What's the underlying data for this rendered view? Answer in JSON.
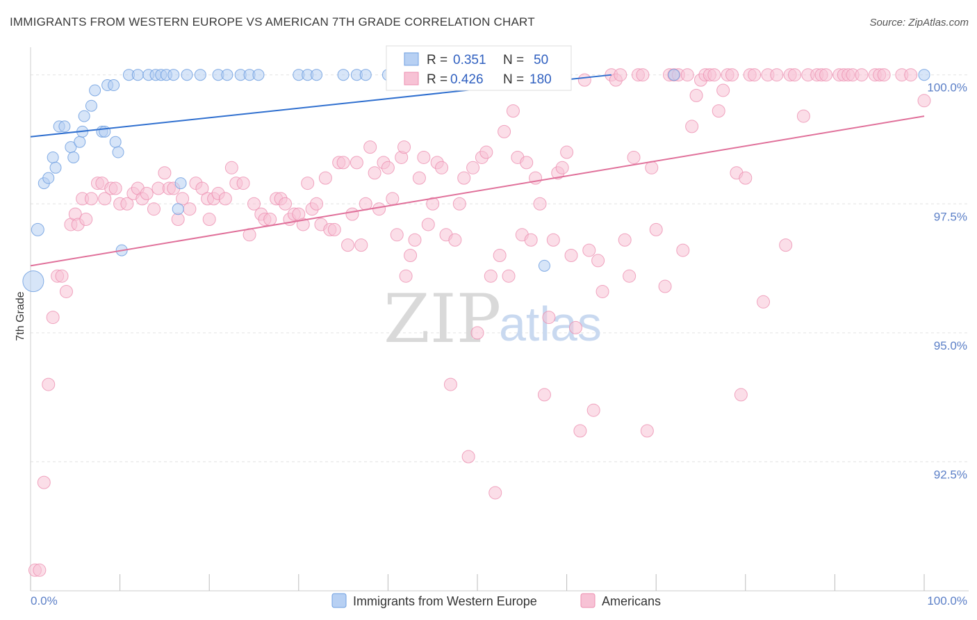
{
  "header": {
    "title": "IMMIGRANTS FROM WESTERN EUROPE VS AMERICAN 7TH GRADE CORRELATION CHART",
    "source": "Source: ZipAtlas.com"
  },
  "watermark": {
    "zip": "ZIP",
    "atlas": "atlas"
  },
  "colors": {
    "blue": "#6f9fe0",
    "blue_fill": "#b7d0f3",
    "blue_line": "#2f6fcf",
    "pink": "#ec8fb0",
    "pink_fill": "#f7c2d5",
    "pink_line": "#e0709a",
    "tick_label": "#5b7fc7",
    "grid": "#e2e2e2"
  },
  "legend": {
    "r_label": "R =",
    "n_label": "N =",
    "items": [
      {
        "r": "0.351",
        "n": "50",
        "color": "#6f9fe0"
      },
      {
        "r": "0.426",
        "n": "180",
        "color": "#ec8fb0"
      }
    ]
  },
  "bottom_legend": [
    {
      "label": "Immigrants from Western Europe",
      "color": "#6f9fe0"
    },
    {
      "label": "Americans",
      "color": "#ec8fb0"
    }
  ],
  "chart_data": {
    "type": "scatter",
    "title": "IMMIGRANTS FROM WESTERN EUROPE VS AMERICAN 7TH GRADE CORRELATION CHART",
    "xlabel": "",
    "ylabel": "7th Grade",
    "xlim": [
      0,
      100
    ],
    "ylim": [
      90.0,
      100.4
    ],
    "x_ticks": [
      {
        "value": 0,
        "label": "0.0%"
      },
      {
        "value": 100,
        "label": "100.0%"
      }
    ],
    "y_ticks": [
      {
        "value": 92.5,
        "label": "92.5%"
      },
      {
        "value": 95.0,
        "label": "95.0%"
      },
      {
        "value": 97.5,
        "label": "97.5%"
      },
      {
        "value": 100.0,
        "label": "100.0%"
      }
    ],
    "grid": true,
    "legend_position": "top-center",
    "series": [
      {
        "name": "Immigrants from Western Europe",
        "r": 0.351,
        "n": 50,
        "trend": [
          [
            0,
            98.8
          ],
          [
            65,
            100.0
          ]
        ],
        "points": [
          [
            0.3,
            96.0,
            15
          ],
          [
            0.8,
            97.0,
            9
          ],
          [
            1.5,
            97.9,
            8
          ],
          [
            2.0,
            98.0,
            8
          ],
          [
            2.5,
            98.4,
            8
          ],
          [
            2.8,
            98.2,
            8
          ],
          [
            3.2,
            99.0,
            8
          ],
          [
            3.8,
            99.0,
            8
          ],
          [
            4.5,
            98.6,
            8
          ],
          [
            4.8,
            98.4,
            8
          ],
          [
            5.5,
            98.7,
            8
          ],
          [
            5.8,
            98.9,
            8
          ],
          [
            6.0,
            99.2,
            8
          ],
          [
            6.8,
            99.4,
            8
          ],
          [
            7.2,
            99.7,
            8
          ],
          [
            8.0,
            98.9,
            8
          ],
          [
            8.3,
            98.9,
            8
          ],
          [
            8.6,
            99.8,
            8
          ],
          [
            9.3,
            99.8,
            8
          ],
          [
            9.5,
            98.7,
            8
          ],
          [
            9.8,
            98.5,
            8
          ],
          [
            10.2,
            96.6,
            8
          ],
          [
            11.0,
            100.0,
            8
          ],
          [
            12.0,
            100.0,
            8
          ],
          [
            13.2,
            100.0,
            8
          ],
          [
            14.0,
            100.0,
            8
          ],
          [
            14.6,
            100.0,
            8
          ],
          [
            15.2,
            100.0,
            8
          ],
          [
            16.0,
            100.0,
            8
          ],
          [
            16.5,
            97.4,
            8
          ],
          [
            16.8,
            97.9,
            8
          ],
          [
            17.5,
            100.0,
            8
          ],
          [
            19.0,
            100.0,
            8
          ],
          [
            21.0,
            100.0,
            8
          ],
          [
            22.0,
            100.0,
            8
          ],
          [
            23.5,
            100.0,
            8
          ],
          [
            24.5,
            100.0,
            8
          ],
          [
            25.5,
            100.0,
            8
          ],
          [
            30.0,
            100.0,
            8
          ],
          [
            31.0,
            100.0,
            8
          ],
          [
            32.0,
            100.0,
            8
          ],
          [
            35.0,
            100.0,
            8
          ],
          [
            36.5,
            100.0,
            8
          ],
          [
            37.5,
            100.0,
            8
          ],
          [
            40.0,
            100.0,
            8
          ],
          [
            43.0,
            100.0,
            8
          ],
          [
            48.0,
            100.0,
            8
          ],
          [
            51.0,
            100.0,
            8
          ],
          [
            57.5,
            96.3,
            8
          ],
          [
            72.0,
            100.0,
            8
          ],
          [
            100.0,
            100.0,
            8
          ]
        ]
      },
      {
        "name": "Americans",
        "r": 0.426,
        "n": 180,
        "trend": [
          [
            0,
            96.3
          ],
          [
            100,
            99.2
          ]
        ],
        "points": [
          [
            0.5,
            90.4,
            9
          ],
          [
            1.0,
            90.4,
            9
          ],
          [
            1.5,
            92.1,
            9
          ],
          [
            2.0,
            94.0,
            9
          ],
          [
            2.5,
            95.3,
            9
          ],
          [
            3.0,
            96.1,
            9
          ],
          [
            3.5,
            96.1,
            9
          ],
          [
            4.0,
            95.8,
            9
          ],
          [
            4.5,
            97.1,
            9
          ],
          [
            5.0,
            97.3,
            9
          ],
          [
            5.3,
            97.1,
            9
          ],
          [
            5.8,
            97.6,
            9
          ],
          [
            6.2,
            97.2,
            9
          ],
          [
            6.8,
            97.6,
            9
          ],
          [
            7.5,
            97.9,
            9
          ],
          [
            8.0,
            97.9,
            9
          ],
          [
            8.3,
            97.6,
            9
          ],
          [
            9.0,
            97.8,
            9
          ],
          [
            9.5,
            97.8,
            9
          ],
          [
            10.0,
            97.5,
            9
          ],
          [
            10.8,
            97.5,
            9
          ],
          [
            11.5,
            97.7,
            9
          ],
          [
            12.0,
            97.8,
            9
          ],
          [
            12.5,
            97.6,
            9
          ],
          [
            13.0,
            97.7,
            9
          ],
          [
            13.8,
            97.4,
            9
          ],
          [
            14.3,
            97.8,
            9
          ],
          [
            15.0,
            98.1,
            9
          ],
          [
            15.5,
            97.8,
            9
          ],
          [
            16.0,
            97.8,
            9
          ],
          [
            16.5,
            97.2,
            9
          ],
          [
            17.0,
            97.6,
            9
          ],
          [
            17.8,
            97.4,
            9
          ],
          [
            18.5,
            97.9,
            9
          ],
          [
            19.2,
            97.8,
            9
          ],
          [
            19.8,
            97.6,
            9
          ],
          [
            20.0,
            97.2,
            9
          ],
          [
            20.5,
            97.6,
            9
          ],
          [
            21.0,
            97.7,
            9
          ],
          [
            21.8,
            97.6,
            9
          ],
          [
            22.5,
            98.2,
            9
          ],
          [
            23.0,
            97.9,
            9
          ],
          [
            23.8,
            97.9,
            9
          ],
          [
            24.5,
            96.9,
            9
          ],
          [
            25.0,
            97.5,
            9
          ],
          [
            25.8,
            97.3,
            9
          ],
          [
            26.2,
            97.2,
            9
          ],
          [
            26.8,
            97.2,
            9
          ],
          [
            27.5,
            97.6,
            9
          ],
          [
            28.0,
            97.6,
            9
          ],
          [
            28.5,
            97.5,
            9
          ],
          [
            29.0,
            97.2,
            9
          ],
          [
            29.5,
            97.3,
            9
          ],
          [
            30.0,
            97.3,
            9
          ],
          [
            30.5,
            97.1,
            9
          ],
          [
            31.0,
            97.9,
            9
          ],
          [
            31.5,
            97.4,
            9
          ],
          [
            32.0,
            97.5,
            9
          ],
          [
            32.5,
            97.1,
            9
          ],
          [
            33.0,
            98.0,
            9
          ],
          [
            33.5,
            97.0,
            9
          ],
          [
            34.0,
            97.0,
            9
          ],
          [
            34.5,
            98.3,
            9
          ],
          [
            35.0,
            98.3,
            9
          ],
          [
            35.5,
            96.7,
            9
          ],
          [
            36.0,
            97.3,
            9
          ],
          [
            36.5,
            98.3,
            9
          ],
          [
            37.0,
            96.7,
            9
          ],
          [
            37.5,
            97.5,
            9
          ],
          [
            38.0,
            98.6,
            9
          ],
          [
            38.5,
            98.1,
            9
          ],
          [
            39.0,
            97.4,
            9
          ],
          [
            39.5,
            98.3,
            9
          ],
          [
            40.0,
            98.2,
            9
          ],
          [
            40.5,
            97.6,
            9
          ],
          [
            41.0,
            96.9,
            9
          ],
          [
            41.5,
            98.4,
            9
          ],
          [
            41.8,
            98.6,
            9
          ],
          [
            42.0,
            96.1,
            9
          ],
          [
            42.5,
            96.5,
            9
          ],
          [
            43.0,
            96.8,
            9
          ],
          [
            43.5,
            98.0,
            9
          ],
          [
            44.0,
            98.4,
            9
          ],
          [
            44.5,
            97.1,
            9
          ],
          [
            45.0,
            97.5,
            9
          ],
          [
            45.5,
            98.3,
            9
          ],
          [
            46.0,
            98.2,
            9
          ],
          [
            46.5,
            96.9,
            9
          ],
          [
            47.0,
            94.0,
            9
          ],
          [
            47.5,
            96.8,
            9
          ],
          [
            48.0,
            97.5,
            9
          ],
          [
            48.5,
            98.0,
            9
          ],
          [
            49.0,
            92.6,
            9
          ],
          [
            49.5,
            98.2,
            9
          ],
          [
            50.0,
            95.0,
            9
          ],
          [
            50.5,
            98.4,
            9
          ],
          [
            51.0,
            98.5,
            9
          ],
          [
            51.5,
            96.1,
            9
          ],
          [
            52.0,
            91.9,
            9
          ],
          [
            52.5,
            96.5,
            9
          ],
          [
            53.0,
            98.9,
            9
          ],
          [
            53.5,
            96.1,
            9
          ],
          [
            54.0,
            99.3,
            9
          ],
          [
            54.5,
            98.4,
            9
          ],
          [
            55.0,
            96.9,
            9
          ],
          [
            55.5,
            98.3,
            9
          ],
          [
            56.0,
            96.8,
            9
          ],
          [
            56.5,
            98.0,
            9
          ],
          [
            57.0,
            97.5,
            9
          ],
          [
            57.5,
            93.8,
            9
          ],
          [
            58.0,
            95.3,
            9
          ],
          [
            58.5,
            96.8,
            9
          ],
          [
            59.0,
            98.1,
            9
          ],
          [
            59.5,
            98.2,
            9
          ],
          [
            60.0,
            98.5,
            9
          ],
          [
            60.5,
            96.5,
            9
          ],
          [
            61.0,
            95.1,
            9
          ],
          [
            61.5,
            93.1,
            9
          ],
          [
            62.0,
            99.9,
            9
          ],
          [
            62.5,
            96.6,
            9
          ],
          [
            63.0,
            93.5,
            9
          ],
          [
            63.5,
            96.4,
            9
          ],
          [
            64.0,
            95.8,
            9
          ],
          [
            65.0,
            100.0,
            9
          ],
          [
            65.5,
            99.9,
            9
          ],
          [
            66.0,
            100.0,
            9
          ],
          [
            66.5,
            96.8,
            9
          ],
          [
            67.0,
            96.1,
            9
          ],
          [
            67.5,
            98.4,
            9
          ],
          [
            68.0,
            100.0,
            9
          ],
          [
            68.5,
            100.0,
            9
          ],
          [
            69.0,
            93.1,
            9
          ],
          [
            69.5,
            98.2,
            9
          ],
          [
            70.0,
            97.0,
            9
          ],
          [
            71.0,
            95.9,
            9
          ],
          [
            71.5,
            100.0,
            9
          ],
          [
            72.0,
            100.0,
            9
          ],
          [
            72.5,
            100.0,
            9
          ],
          [
            73.0,
            96.6,
            9
          ],
          [
            73.5,
            100.0,
            9
          ],
          [
            74.0,
            99.0,
            9
          ],
          [
            74.5,
            99.6,
            9
          ],
          [
            75.0,
            99.9,
            9
          ],
          [
            75.5,
            100.0,
            9
          ],
          [
            76.0,
            100.0,
            9
          ],
          [
            76.5,
            100.0,
            9
          ],
          [
            77.0,
            99.3,
            9
          ],
          [
            77.5,
            99.7,
            9
          ],
          [
            78.0,
            100.0,
            9
          ],
          [
            78.5,
            100.0,
            9
          ],
          [
            79.0,
            98.1,
            9
          ],
          [
            79.5,
            93.8,
            9
          ],
          [
            80.0,
            98.0,
            9
          ],
          [
            80.5,
            100.0,
            9
          ],
          [
            81.0,
            100.0,
            9
          ],
          [
            82.0,
            95.6,
            9
          ],
          [
            82.5,
            100.0,
            9
          ],
          [
            83.5,
            100.0,
            9
          ],
          [
            84.5,
            96.7,
            9
          ],
          [
            85.0,
            100.0,
            9
          ],
          [
            85.5,
            100.0,
            9
          ],
          [
            86.5,
            99.2,
            9
          ],
          [
            87.0,
            100.0,
            9
          ],
          [
            88.0,
            100.0,
            9
          ],
          [
            88.5,
            100.0,
            9
          ],
          [
            89.0,
            100.0,
            9
          ],
          [
            90.5,
            100.0,
            9
          ],
          [
            91.0,
            100.0,
            9
          ],
          [
            91.5,
            100.0,
            9
          ],
          [
            92.0,
            100.0,
            9
          ],
          [
            93.0,
            100.0,
            9
          ],
          [
            94.5,
            100.0,
            9
          ],
          [
            95.0,
            100.0,
            9
          ],
          [
            95.5,
            100.0,
            9
          ],
          [
            97.5,
            100.0,
            9
          ],
          [
            98.5,
            100.0,
            9
          ],
          [
            100.0,
            99.5,
            9
          ]
        ]
      }
    ]
  }
}
